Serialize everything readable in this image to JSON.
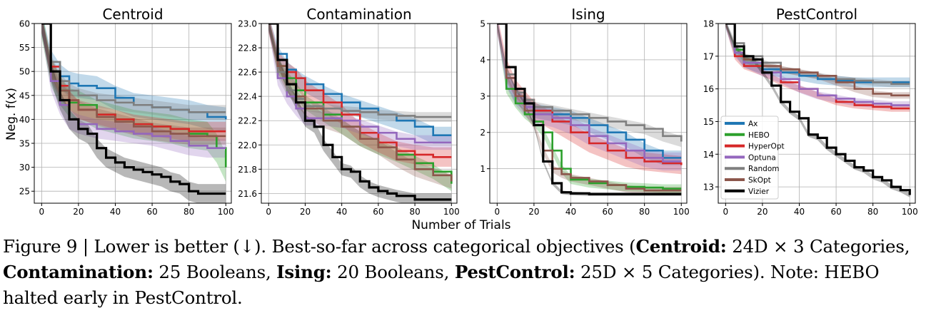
{
  "figure": {
    "x_label": "Number of Trials",
    "y_label": "Neg. f(x)",
    "caption": {
      "prefix": "Figure 9 | Lower is better (↓). Best-so-far across categorical objectives (",
      "t1": "Centroid:",
      "d1": " 24D × 3 Categories, ",
      "t2": "Contamination:",
      "d2": " 25 Booleans, ",
      "t3": "Ising:",
      "d3": " 20 Booleans, ",
      "t4": "PestControl:",
      "d4": " 25D × 5 Categories). Note: HEBO halted early in PestControl."
    }
  },
  "legend": [
    {
      "name": "Ax",
      "color": "#1f77b4"
    },
    {
      "name": "HEBO",
      "color": "#2ca02c"
    },
    {
      "name": "HyperOpt",
      "color": "#d62728"
    },
    {
      "name": "Optuna",
      "color": "#9467bd"
    },
    {
      "name": "Random",
      "color": "#7f7f7f"
    },
    {
      "name": "SkOpt",
      "color": "#8c564b"
    },
    {
      "name": "Vizier",
      "color": "#000000"
    }
  ],
  "chart_data": [
    {
      "type": "line",
      "title": "Centroid",
      "xlim": [
        -4,
        103
      ],
      "ylim": [
        22.5,
        60
      ],
      "xticks": [
        0,
        20,
        40,
        60,
        80,
        100
      ],
      "yticks": [
        25,
        30,
        35,
        40,
        45,
        50,
        55,
        60
      ],
      "grid": true,
      "series": [
        {
          "name": "Ax",
          "color": "#1f77b4",
          "x": [
            0,
            5,
            10,
            15,
            20,
            30,
            40,
            50,
            60,
            70,
            80,
            90,
            100
          ],
          "y": [
            60,
            52,
            49,
            47.5,
            47,
            46.5,
            44.5,
            43,
            42.5,
            42,
            41.5,
            40.5,
            40
          ],
          "band": 2.5
        },
        {
          "name": "HEBO",
          "color": "#2ca02c",
          "x": [
            0,
            5,
            10,
            15,
            20,
            30,
            40,
            50,
            60,
            70,
            80,
            90,
            95,
            100
          ],
          "y": [
            60,
            50,
            46,
            43.5,
            43,
            41,
            40,
            39,
            38.5,
            38,
            37,
            36.5,
            34,
            30
          ],
          "band": 3
        },
        {
          "name": "HyperOpt",
          "color": "#d62728",
          "x": [
            0,
            5,
            10,
            15,
            20,
            30,
            40,
            50,
            60,
            70,
            80,
            90,
            100
          ],
          "y": [
            60,
            51,
            47,
            44,
            42,
            41,
            40,
            39,
            38.5,
            38,
            37.5,
            37.5,
            37.5
          ],
          "band": 2
        },
        {
          "name": "Optuna",
          "color": "#9467bd",
          "x": [
            0,
            5,
            10,
            15,
            20,
            30,
            40,
            50,
            60,
            70,
            80,
            90,
            100
          ],
          "y": [
            60,
            48,
            43,
            40,
            39,
            38,
            37.5,
            37,
            36.5,
            35.5,
            34.5,
            34,
            34
          ],
          "band": 2
        },
        {
          "name": "Random",
          "color": "#7f7f7f",
          "x": [
            0,
            5,
            10,
            15,
            20,
            30,
            40,
            50,
            60,
            70,
            80,
            90,
            100
          ],
          "y": [
            60,
            52,
            48,
            46,
            45,
            44,
            43.5,
            43,
            42.5,
            42,
            41.5,
            41.5,
            41.5
          ],
          "band": 1.5
        },
        {
          "name": "SkOpt",
          "color": "#8c564b",
          "x": [
            0,
            5,
            10,
            15,
            20,
            30,
            40,
            50,
            60,
            70,
            80,
            90,
            100
          ],
          "y": [
            60,
            50,
            46,
            44,
            42,
            40.5,
            39.5,
            38.5,
            37.5,
            37,
            36.5,
            36.5,
            36.5
          ],
          "band": 1.8
        },
        {
          "name": "Vizier",
          "color": "#000000",
          "x": [
            0,
            5,
            10,
            15,
            20,
            25,
            30,
            35,
            40,
            45,
            50,
            55,
            60,
            65,
            70,
            75,
            80,
            85,
            90,
            95,
            100
          ],
          "y": [
            60,
            50,
            44,
            40,
            38,
            37,
            34,
            32,
            31,
            30,
            29.5,
            29,
            28.5,
            28,
            27,
            26.5,
            25,
            24.5,
            24.5,
            24.5,
            24.5
          ],
          "band": 2
        }
      ]
    },
    {
      "type": "line",
      "title": "Contamination",
      "xlim": [
        -4,
        103
      ],
      "ylim": [
        21.52,
        23
      ],
      "xticks": [
        0,
        20,
        40,
        60,
        80,
        100
      ],
      "yticks": [
        21.6,
        21.8,
        22.0,
        22.2,
        22.4,
        22.6,
        22.8,
        23.0
      ],
      "grid": true,
      "series": [
        {
          "name": "Ax",
          "color": "#1f77b4",
          "x": [
            0,
            5,
            10,
            15,
            20,
            30,
            40,
            50,
            60,
            70,
            80,
            90,
            100
          ],
          "y": [
            23,
            22.75,
            22.62,
            22.55,
            22.5,
            22.42,
            22.35,
            22.3,
            22.25,
            22.2,
            22.15,
            22.08,
            22.08
          ],
          "band": 0.07
        },
        {
          "name": "HEBO",
          "color": "#2ca02c",
          "x": [
            0,
            5,
            10,
            15,
            20,
            30,
            40,
            50,
            60,
            70,
            80,
            90,
            100
          ],
          "y": [
            23,
            22.65,
            22.55,
            22.45,
            22.35,
            22.25,
            22.15,
            22.05,
            21.98,
            21.92,
            21.85,
            21.78,
            21.68
          ],
          "band": 0.06
        },
        {
          "name": "HyperOpt",
          "color": "#d62728",
          "x": [
            0,
            5,
            10,
            15,
            20,
            30,
            40,
            50,
            60,
            70,
            80,
            90,
            100
          ],
          "y": [
            23,
            22.7,
            22.6,
            22.55,
            22.45,
            22.35,
            22.25,
            22.1,
            22.02,
            21.95,
            21.92,
            21.9,
            21.9
          ],
          "band": 0.08
        },
        {
          "name": "Optuna",
          "color": "#9467bd",
          "x": [
            0,
            5,
            10,
            15,
            20,
            30,
            40,
            50,
            60,
            70,
            80,
            90,
            100
          ],
          "y": [
            23,
            22.55,
            22.4,
            22.3,
            22.22,
            22.22,
            22.2,
            22.15,
            22.1,
            22.05,
            22.02,
            22.02,
            22.02
          ],
          "band": 0.06
        },
        {
          "name": "Random",
          "color": "#7f7f7f",
          "x": [
            0,
            5,
            10,
            15,
            20,
            30,
            40,
            50,
            60,
            70,
            80,
            90,
            100
          ],
          "y": [
            23,
            22.6,
            22.45,
            22.38,
            22.32,
            22.3,
            22.28,
            22.27,
            22.25,
            22.24,
            22.23,
            22.23,
            22.23
          ],
          "band": 0.04
        },
        {
          "name": "SkOpt",
          "color": "#8c564b",
          "x": [
            0,
            5,
            10,
            15,
            20,
            30,
            40,
            50,
            60,
            70,
            80,
            90,
            100
          ],
          "y": [
            23,
            22.65,
            22.5,
            22.4,
            22.3,
            22.2,
            22.15,
            22.05,
            21.98,
            21.88,
            21.8,
            21.75,
            21.7
          ],
          "band": 0.06
        },
        {
          "name": "Vizier",
          "color": "#000000",
          "x": [
            0,
            5,
            10,
            15,
            20,
            25,
            30,
            35,
            40,
            45,
            50,
            55,
            60,
            65,
            70,
            80,
            90,
            100
          ],
          "y": [
            23,
            22.7,
            22.5,
            22.35,
            22.2,
            22.15,
            22.0,
            21.9,
            21.8,
            21.78,
            21.7,
            21.65,
            21.62,
            21.6,
            21.58,
            21.55,
            21.55,
            21.55
          ],
          "band": 0.05
        }
      ]
    },
    {
      "type": "line",
      "title": "Ising",
      "xlim": [
        -4,
        103
      ],
      "ylim": [
        0.05,
        5
      ],
      "xticks": [
        0,
        20,
        40,
        60,
        80,
        100
      ],
      "yticks": [
        1,
        2,
        3,
        4,
        5
      ],
      "grid": true,
      "series": [
        {
          "name": "Ax",
          "color": "#1f77b4",
          "x": [
            0,
            5,
            10,
            15,
            20,
            30,
            40,
            50,
            60,
            70,
            80,
            90,
            100
          ],
          "y": [
            5,
            3.5,
            3.0,
            2.8,
            2.6,
            2.5,
            2.4,
            2.2,
            2.0,
            1.8,
            1.5,
            1.3,
            1.3
          ],
          "band": 0.2
        },
        {
          "name": "HEBO",
          "color": "#2ca02c",
          "x": [
            0,
            5,
            10,
            15,
            20,
            25,
            30,
            35,
            40,
            50,
            60,
            70,
            80,
            90,
            100
          ],
          "y": [
            5,
            3.2,
            2.8,
            2.5,
            2.3,
            2.0,
            1.5,
            1.0,
            0.7,
            0.6,
            0.55,
            0.5,
            0.48,
            0.45,
            0.45
          ],
          "band": 0.12
        },
        {
          "name": "HyperOpt",
          "color": "#d62728",
          "x": [
            0,
            5,
            10,
            15,
            20,
            30,
            40,
            50,
            60,
            70,
            80,
            90,
            100
          ],
          "y": [
            5,
            3.8,
            3.2,
            2.9,
            2.6,
            2.3,
            2.0,
            1.7,
            1.5,
            1.3,
            1.2,
            1.15,
            1.1
          ],
          "band": 0.25
        },
        {
          "name": "Optuna",
          "color": "#9467bd",
          "x": [
            0,
            5,
            10,
            15,
            20,
            30,
            40,
            50,
            60,
            70,
            80,
            90,
            100
          ],
          "y": [
            5,
            3.5,
            3.0,
            2.7,
            2.5,
            2.4,
            2.2,
            1.9,
            1.7,
            1.5,
            1.3,
            1.2,
            1.2
          ],
          "band": 0.25
        },
        {
          "name": "Random",
          "color": "#7f7f7f",
          "x": [
            0,
            5,
            10,
            15,
            20,
            30,
            40,
            50,
            60,
            70,
            80,
            90,
            100
          ],
          "y": [
            5,
            3.6,
            3.1,
            2.9,
            2.7,
            2.6,
            2.5,
            2.4,
            2.3,
            2.2,
            2.1,
            1.9,
            1.75
          ],
          "band": 0.15
        },
        {
          "name": "SkOpt",
          "color": "#8c564b",
          "x": [
            0,
            5,
            10,
            15,
            20,
            25,
            30,
            35,
            40,
            50,
            60,
            70,
            80,
            90,
            100
          ],
          "y": [
            5,
            3.5,
            3.0,
            2.6,
            2.2,
            1.5,
            1.0,
            0.85,
            0.75,
            0.65,
            0.55,
            0.45,
            0.4,
            0.4,
            0.4
          ],
          "band": 0.1
        },
        {
          "name": "Vizier",
          "color": "#000000",
          "x": [
            0,
            5,
            10,
            15,
            20,
            25,
            30,
            35,
            40,
            50,
            60,
            70,
            80,
            90,
            100
          ],
          "y": [
            5,
            3.8,
            3.2,
            2.8,
            2.2,
            1.2,
            0.6,
            0.35,
            0.32,
            0.3,
            0.3,
            0.3,
            0.3,
            0.3,
            0.3
          ],
          "band": 0.05
        }
      ]
    },
    {
      "type": "line",
      "title": "PestControl",
      "xlim": [
        -4,
        103
      ],
      "ylim": [
        12.5,
        18
      ],
      "xticks": [
        0,
        20,
        40,
        60,
        80,
        100
      ],
      "yticks": [
        13,
        14,
        15,
        16,
        17,
        18
      ],
      "grid": true,
      "series": [
        {
          "name": "Ax",
          "color": "#1f77b4",
          "x": [
            0,
            5,
            10,
            20,
            30,
            40,
            50,
            60,
            70,
            80,
            90,
            100
          ],
          "y": [
            18,
            17.2,
            16.8,
            16.6,
            16.5,
            16.4,
            16.3,
            16.25,
            16.2,
            16.2,
            16.2,
            16.2
          ],
          "band": 0.15
        },
        {
          "name": "HEBO",
          "color": "#2ca02c",
          "x": [
            0,
            5,
            10,
            20
          ],
          "y": [
            18,
            17.2,
            16.9,
            16.7
          ],
          "band": 0.1
        },
        {
          "name": "HyperOpt",
          "color": "#d62728",
          "x": [
            0,
            5,
            10,
            20,
            30,
            40,
            50,
            60,
            70,
            80,
            90,
            100
          ],
          "y": [
            18,
            17.0,
            16.7,
            16.5,
            16.2,
            16.0,
            15.8,
            15.6,
            15.5,
            15.45,
            15.4,
            15.4
          ],
          "band": 0.1
        },
        {
          "name": "Optuna",
          "color": "#9467bd",
          "x": [
            0,
            5,
            10,
            20,
            30,
            40,
            50,
            60,
            70,
            80,
            90,
            100
          ],
          "y": [
            18,
            17.1,
            16.8,
            16.5,
            16.3,
            16.0,
            15.8,
            15.7,
            15.6,
            15.55,
            15.5,
            15.5
          ],
          "band": 0.12
        },
        {
          "name": "Random",
          "color": "#7f7f7f",
          "x": [
            0,
            5,
            10,
            20,
            30,
            40,
            50,
            60,
            70,
            80,
            90,
            100
          ],
          "y": [
            18,
            17.4,
            17.0,
            16.8,
            16.6,
            16.5,
            16.4,
            16.3,
            16.25,
            16.2,
            16.15,
            16.15
          ],
          "band": 0.1
        },
        {
          "name": "SkOpt",
          "color": "#8c564b",
          "x": [
            0,
            5,
            10,
            20,
            30,
            40,
            50,
            60,
            70,
            80,
            90,
            100
          ],
          "y": [
            18,
            17.3,
            16.9,
            16.7,
            16.6,
            16.5,
            16.4,
            16.2,
            16.0,
            15.85,
            15.8,
            15.8
          ],
          "band": 0.1
        },
        {
          "name": "Vizier",
          "color": "#000000",
          "x": [
            0,
            5,
            10,
            15,
            20,
            25,
            30,
            35,
            40,
            45,
            50,
            55,
            60,
            65,
            70,
            75,
            80,
            85,
            90,
            95,
            100
          ],
          "y": [
            18,
            17.3,
            17.0,
            16.9,
            16.5,
            16.1,
            15.6,
            15.3,
            15.1,
            14.6,
            14.5,
            14.2,
            14.0,
            13.8,
            13.6,
            13.5,
            13.3,
            13.2,
            13.0,
            12.9,
            12.75
          ],
          "band": 0.07
        }
      ]
    }
  ]
}
